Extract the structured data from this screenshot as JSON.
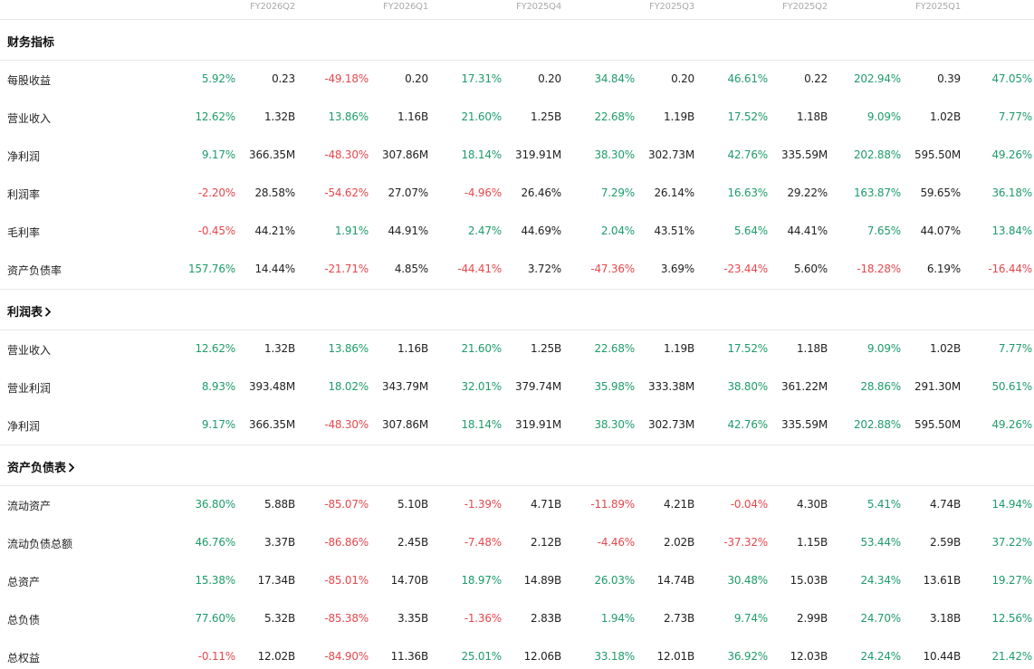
{
  "colors": {
    "positive": "#1e9c6b",
    "negative": "#e5484d"
  },
  "periods": [
    "FY2026Q2",
    "FY2026Q1",
    "FY2025Q4",
    "FY2025Q3",
    "FY2025Q2",
    "FY2025Q1"
  ],
  "sections": [
    {
      "title": "财务指标",
      "link": false,
      "rows": [
        {
          "label": "每股收益",
          "cells": [
            "5.92%",
            "0.23",
            "-49.18%",
            "0.20",
            "17.31%",
            "0.20",
            "34.84%",
            "0.20",
            "46.61%",
            "0.22",
            "202.94%",
            "0.39",
            "47.05%"
          ]
        },
        {
          "label": "营业收入",
          "cells": [
            "12.62%",
            "1.32B",
            "13.86%",
            "1.16B",
            "21.60%",
            "1.25B",
            "22.68%",
            "1.19B",
            "17.52%",
            "1.18B",
            "9.09%",
            "1.02B",
            "7.77%"
          ]
        },
        {
          "label": "净利润",
          "cells": [
            "9.17%",
            "366.35M",
            "-48.30%",
            "307.86M",
            "18.14%",
            "319.91M",
            "38.30%",
            "302.73M",
            "42.76%",
            "335.59M",
            "202.88%",
            "595.50M",
            "49.26%"
          ]
        },
        {
          "label": "利润率",
          "cells": [
            "-2.20%",
            "28.58%",
            "-54.62%",
            "27.07%",
            "-4.96%",
            "26.46%",
            "7.29%",
            "26.14%",
            "16.63%",
            "29.22%",
            "163.87%",
            "59.65%",
            "36.18%"
          ]
        },
        {
          "label": "毛利率",
          "cells": [
            "-0.45%",
            "44.21%",
            "1.91%",
            "44.91%",
            "2.47%",
            "44.69%",
            "2.04%",
            "43.51%",
            "5.64%",
            "44.41%",
            "7.65%",
            "44.07%",
            "13.84%"
          ]
        },
        {
          "label": "资产负债率",
          "cells": [
            "157.76%",
            "14.44%",
            "-21.71%",
            "4.85%",
            "-44.41%",
            "3.72%",
            "-47.36%",
            "3.69%",
            "-23.44%",
            "5.60%",
            "-18.28%",
            "6.19%",
            "-16.44%"
          ]
        }
      ]
    },
    {
      "title": "利润表",
      "link": true,
      "rows": [
        {
          "label": "营业收入",
          "cells": [
            "12.62%",
            "1.32B",
            "13.86%",
            "1.16B",
            "21.60%",
            "1.25B",
            "22.68%",
            "1.19B",
            "17.52%",
            "1.18B",
            "9.09%",
            "1.02B",
            "7.77%"
          ]
        },
        {
          "label": "营业利润",
          "cells": [
            "8.93%",
            "393.48M",
            "18.02%",
            "343.79M",
            "32.01%",
            "379.74M",
            "35.98%",
            "333.38M",
            "38.80%",
            "361.22M",
            "28.86%",
            "291.30M",
            "50.61%"
          ]
        },
        {
          "label": "净利润",
          "cells": [
            "9.17%",
            "366.35M",
            "-48.30%",
            "307.86M",
            "18.14%",
            "319.91M",
            "38.30%",
            "302.73M",
            "42.76%",
            "335.59M",
            "202.88%",
            "595.50M",
            "49.26%"
          ]
        }
      ]
    },
    {
      "title": "资产负债表",
      "link": true,
      "rows": [
        {
          "label": "流动资产",
          "cells": [
            "36.80%",
            "5.88B",
            "-85.07%",
            "5.10B",
            "-1.39%",
            "4.71B",
            "-11.89%",
            "4.21B",
            "-0.04%",
            "4.30B",
            "5.41%",
            "4.74B",
            "14.94%"
          ]
        },
        {
          "label": "流动负债总额",
          "cells": [
            "46.76%",
            "3.37B",
            "-86.86%",
            "2.45B",
            "-7.48%",
            "2.12B",
            "-4.46%",
            "2.02B",
            "-37.32%",
            "1.15B",
            "53.44%",
            "2.59B",
            "37.22%"
          ]
        },
        {
          "label": "总资产",
          "cells": [
            "15.38%",
            "17.34B",
            "-85.01%",
            "14.70B",
            "18.97%",
            "14.89B",
            "26.03%",
            "14.74B",
            "30.48%",
            "15.03B",
            "24.34%",
            "13.61B",
            "19.27%"
          ]
        },
        {
          "label": "总负债",
          "cells": [
            "77.60%",
            "5.32B",
            "-85.38%",
            "3.35B",
            "-1.36%",
            "2.83B",
            "1.94%",
            "2.73B",
            "9.74%",
            "2.99B",
            "24.70%",
            "3.18B",
            "12.56%"
          ]
        },
        {
          "label": "总权益",
          "cells": [
            "-0.11%",
            "12.02B",
            "-84.90%",
            "11.36B",
            "25.01%",
            "12.06B",
            "33.18%",
            "12.01B",
            "36.92%",
            "12.03B",
            "24.24%",
            "10.44B",
            "21.42%"
          ]
        }
      ]
    }
  ]
}
